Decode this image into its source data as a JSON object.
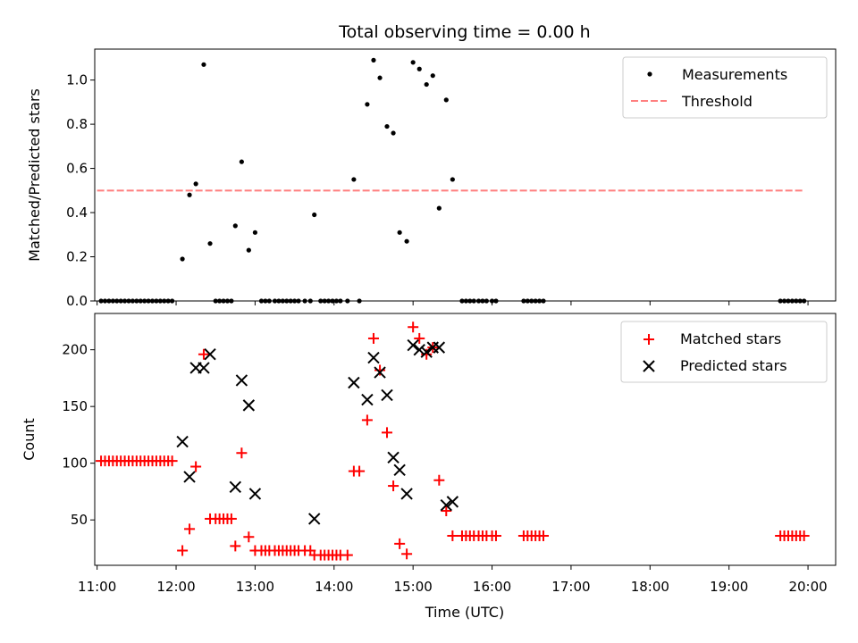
{
  "chart_data": [
    {
      "type": "scatter",
      "title": "Total observing time = 0.00 h",
      "ylabel": "Matched/Predicted stars",
      "xlabel": "",
      "xlim": [
        10.97,
        20.35
      ],
      "ylim": [
        0,
        1.14
      ],
      "yticks": [
        0.0,
        0.2,
        0.4,
        0.6,
        0.8,
        1.0
      ],
      "ytick_labels": [
        "0.0",
        "0.2",
        "0.4",
        "0.6",
        "0.8",
        "1.0"
      ],
      "legend_position": "upper right",
      "series": [
        {
          "name": "Measurements",
          "color": "#000000",
          "marker": "dot",
          "x": [
            11.05,
            11.1,
            11.15,
            11.2,
            11.25,
            11.3,
            11.35,
            11.4,
            11.45,
            11.5,
            11.55,
            11.6,
            11.65,
            11.7,
            11.75,
            11.8,
            11.85,
            11.9,
            11.95,
            12.08,
            12.17,
            12.25,
            12.35,
            12.43,
            12.5,
            12.55,
            12.6,
            12.65,
            12.7,
            12.75,
            12.83,
            12.92,
            13.0,
            13.08,
            13.13,
            13.18,
            13.25,
            13.3,
            13.35,
            13.4,
            13.45,
            13.5,
            13.55,
            13.63,
            13.7,
            13.75,
            13.83,
            13.88,
            13.93,
            13.98,
            14.03,
            14.08,
            14.17,
            14.25,
            14.32,
            14.42,
            14.5,
            14.58,
            14.67,
            14.75,
            14.83,
            14.92,
            15.0,
            15.08,
            15.17,
            15.25,
            15.33,
            15.42,
            15.5,
            15.62,
            15.67,
            15.72,
            15.77,
            15.83,
            15.88,
            15.93,
            16.0,
            16.05,
            16.4,
            16.45,
            16.5,
            16.55,
            16.6,
            16.65,
            19.65,
            19.7,
            19.75,
            19.8,
            19.85,
            19.9,
            19.95
          ],
          "y": [
            0,
            0,
            0,
            0,
            0,
            0,
            0,
            0,
            0,
            0,
            0,
            0,
            0,
            0,
            0,
            0,
            0,
            0,
            0,
            0.19,
            0.48,
            0.53,
            1.07,
            0.26,
            0,
            0,
            0,
            0,
            0,
            0.34,
            0.63,
            0.23,
            0.31,
            0,
            0,
            0,
            0,
            0,
            0,
            0,
            0,
            0,
            0,
            0,
            0,
            0.39,
            0,
            0,
            0,
            0,
            0,
            0,
            0,
            0.55,
            0,
            0.89,
            1.09,
            1.01,
            0.79,
            0.76,
            0.31,
            0.27,
            1.08,
            1.05,
            0.98,
            1.02,
            0.42,
            0.91,
            0.55,
            0,
            0,
            0,
            0,
            0,
            0,
            0,
            0,
            0,
            0,
            0,
            0,
            0,
            0,
            0,
            0,
            0,
            0,
            0,
            0,
            0,
            0
          ]
        },
        {
          "name": "Threshold",
          "color": "#ff7f7f",
          "style": "dashed",
          "x": [
            11.0,
            19.95
          ],
          "y": [
            0.5,
            0.5
          ]
        }
      ]
    },
    {
      "type": "scatter",
      "title": "",
      "ylabel": "Count",
      "xlabel": "Time (UTC)",
      "xlim": [
        10.97,
        20.35
      ],
      "ylim": [
        10,
        232
      ],
      "yticks": [
        50,
        100,
        150,
        200
      ],
      "ytick_labels": [
        "50",
        "100",
        "150",
        "200"
      ],
      "xticks": [
        11,
        12,
        13,
        14,
        15,
        16,
        17,
        18,
        19,
        20
      ],
      "xtick_labels": [
        "11:00",
        "12:00",
        "13:00",
        "14:00",
        "15:00",
        "16:00",
        "17:00",
        "18:00",
        "19:00",
        "20:00"
      ],
      "legend_position": "upper right",
      "series": [
        {
          "name": "Matched stars",
          "color": "#ff0000",
          "marker": "plus",
          "x": [
            11.05,
            11.1,
            11.15,
            11.2,
            11.25,
            11.3,
            11.35,
            11.4,
            11.45,
            11.5,
            11.55,
            11.6,
            11.65,
            11.7,
            11.75,
            11.8,
            11.85,
            11.9,
            11.95,
            12.08,
            12.17,
            12.25,
            12.35,
            12.43,
            12.5,
            12.55,
            12.6,
            12.65,
            12.7,
            12.75,
            12.83,
            12.92,
            13.0,
            13.08,
            13.13,
            13.18,
            13.25,
            13.3,
            13.35,
            13.4,
            13.45,
            13.5,
            13.55,
            13.63,
            13.7,
            13.75,
            13.83,
            13.88,
            13.93,
            13.98,
            14.03,
            14.08,
            14.17,
            14.25,
            14.32,
            14.42,
            14.5,
            14.58,
            14.67,
            14.75,
            14.83,
            14.92,
            15.0,
            15.08,
            15.17,
            15.25,
            15.33,
            15.42,
            15.5,
            15.62,
            15.67,
            15.72,
            15.77,
            15.83,
            15.88,
            15.93,
            16.0,
            16.05,
            16.4,
            16.45,
            16.5,
            16.55,
            16.6,
            16.65,
            19.65,
            19.7,
            19.75,
            19.8,
            19.85,
            19.9,
            19.95
          ],
          "y": [
            102,
            102,
            102,
            102,
            102,
            102,
            102,
            102,
            102,
            102,
            102,
            102,
            102,
            102,
            102,
            102,
            102,
            102,
            102,
            23,
            42,
            97,
            196,
            51,
            51,
            51,
            51,
            51,
            51,
            27,
            109,
            35,
            23,
            23,
            23,
            23,
            23,
            23,
            23,
            23,
            23,
            23,
            23,
            23,
            23,
            19,
            19,
            19,
            19,
            19,
            19,
            19,
            19,
            93,
            93,
            138,
            210,
            182,
            127,
            80,
            29,
            20,
            220,
            210,
            196,
            202,
            85,
            58,
            36,
            36,
            36,
            36,
            36,
            36,
            36,
            36,
            36,
            36,
            36,
            36,
            36,
            36,
            36,
            36,
            36,
            36,
            36,
            36,
            36,
            36,
            36
          ]
        },
        {
          "name": "Predicted stars",
          "color": "#000000",
          "marker": "x",
          "x": [
            12.08,
            12.17,
            12.25,
            12.35,
            12.43,
            12.75,
            12.83,
            12.92,
            13.0,
            13.75,
            14.25,
            14.42,
            14.5,
            14.58,
            14.67,
            14.75,
            14.83,
            14.92,
            15.0,
            15.08,
            15.17,
            15.25,
            15.33,
            15.42,
            15.5
          ],
          "y": [
            119,
            88,
            184,
            184,
            196,
            79,
            173,
            151,
            73,
            51,
            171,
            156,
            193,
            180,
            160,
            105,
            94,
            73,
            204,
            200,
            198,
            202,
            202,
            63,
            66
          ]
        }
      ]
    }
  ]
}
